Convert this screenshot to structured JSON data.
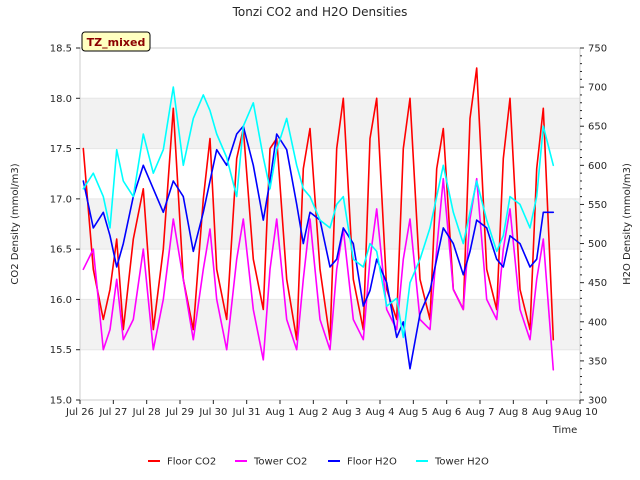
{
  "chart_data": {
    "type": "line",
    "title": "Tonzi CO2 and H2O Densities",
    "xlabel": "Time",
    "ylabel_left": "CO2 Density (mmol/m3)",
    "ylabel_right": "H2O Density (mmol/m3)",
    "ylim_left": [
      15.0,
      18.5
    ],
    "ylim_right": [
      300,
      750
    ],
    "xlim_days": [
      0,
      15
    ],
    "x_tick_labels": [
      "Jul 26",
      "Jul 27",
      "Jul 28",
      "Jul 29",
      "Jul 30",
      "Jul 31",
      "Aug 1",
      "Aug 2",
      "Aug 3",
      "Aug 4",
      "Aug 5",
      "Aug 6",
      "Aug 7",
      "Aug 8",
      "Aug 9",
      "Aug 10"
    ],
    "y_left_ticks": [
      "15.0",
      "15.5",
      "16.0",
      "16.5",
      "17.0",
      "17.5",
      "18.0",
      "18.5"
    ],
    "y_right_ticks": [
      "300",
      "350",
      "400",
      "450",
      "500",
      "550",
      "600",
      "650",
      "700",
      "750"
    ],
    "background_bands": "alternating gray bands between left-axis ticks",
    "annotation": "TZ_mixed",
    "legend_position": "bottom-center",
    "series": [
      {
        "name": "Floor CO2",
        "axis": "left",
        "color": "#ff0000",
        "x_days": [
          0.1,
          0.4,
          0.7,
          0.9,
          1.1,
          1.3,
          1.6,
          1.9,
          2.2,
          2.5,
          2.8,
          3.1,
          3.4,
          3.7,
          3.9,
          4.1,
          4.4,
          4.7,
          4.9,
          5.2,
          5.5,
          5.7,
          5.9,
          6.2,
          6.5,
          6.7,
          6.9,
          7.2,
          7.5,
          7.7,
          7.9,
          8.2,
          8.5,
          8.7,
          8.9,
          9.2,
          9.5,
          9.7,
          9.9,
          10.2,
          10.5,
          10.7,
          10.9,
          11.2,
          11.5,
          11.7,
          11.9,
          12.2,
          12.5,
          12.7,
          12.9,
          13.2,
          13.5,
          13.7,
          13.9,
          14.2
        ],
        "values": [
          17.5,
          16.3,
          15.8,
          16.1,
          16.6,
          15.7,
          16.6,
          17.1,
          15.7,
          16.5,
          17.9,
          16.2,
          15.7,
          17.0,
          17.6,
          16.3,
          15.8,
          17.4,
          17.7,
          16.4,
          15.9,
          17.5,
          17.6,
          16.2,
          15.6,
          17.3,
          17.7,
          16.3,
          15.6,
          17.5,
          18.0,
          16.2,
          15.7,
          17.6,
          18.0,
          16.1,
          15.8,
          17.5,
          18.0,
          16.2,
          15.8,
          17.3,
          17.7,
          16.1,
          15.9,
          17.8,
          18.3,
          16.3,
          15.9,
          17.4,
          18.0,
          16.1,
          15.7,
          17.3,
          17.9,
          15.6
        ]
      },
      {
        "name": "Tower CO2",
        "axis": "left",
        "color": "#ff00ff",
        "x_days": [
          0.1,
          0.4,
          0.7,
          0.9,
          1.1,
          1.3,
          1.6,
          1.9,
          2.2,
          2.5,
          2.8,
          3.1,
          3.4,
          3.7,
          3.9,
          4.1,
          4.4,
          4.7,
          4.9,
          5.2,
          5.5,
          5.7,
          5.9,
          6.2,
          6.5,
          6.7,
          6.9,
          7.2,
          7.5,
          7.7,
          7.9,
          8.2,
          8.5,
          8.7,
          8.9,
          9.2,
          9.5,
          9.7,
          9.9,
          10.2,
          10.5,
          10.7,
          10.9,
          11.2,
          11.5,
          11.7,
          11.9,
          12.2,
          12.5,
          12.7,
          12.9,
          13.2,
          13.5,
          13.7,
          13.9,
          14.2
        ],
        "values": [
          16.3,
          16.5,
          15.5,
          15.7,
          16.2,
          15.6,
          15.8,
          16.5,
          15.5,
          16.0,
          16.8,
          16.2,
          15.6,
          16.3,
          16.7,
          16.0,
          15.5,
          16.4,
          16.8,
          15.9,
          15.4,
          16.3,
          16.8,
          15.8,
          15.5,
          16.2,
          16.8,
          15.8,
          15.5,
          16.3,
          16.7,
          15.8,
          15.6,
          16.4,
          16.9,
          15.9,
          15.7,
          16.4,
          16.8,
          15.8,
          15.7,
          16.5,
          17.2,
          16.1,
          15.9,
          16.8,
          17.2,
          16.0,
          15.8,
          16.5,
          16.9,
          15.9,
          15.6,
          16.2,
          16.6,
          15.3
        ]
      },
      {
        "name": "Floor H2O",
        "axis": "right",
        "color": "#0000ff",
        "x_days": [
          0.1,
          0.4,
          0.7,
          0.9,
          1.1,
          1.3,
          1.6,
          1.9,
          2.2,
          2.5,
          2.8,
          3.1,
          3.4,
          3.7,
          3.9,
          4.1,
          4.4,
          4.7,
          4.9,
          5.2,
          5.5,
          5.7,
          5.9,
          6.2,
          6.5,
          6.7,
          6.9,
          7.2,
          7.5,
          7.7,
          7.9,
          8.2,
          8.5,
          8.7,
          8.9,
          9.2,
          9.5,
          9.7,
          9.9,
          10.2,
          10.5,
          10.7,
          10.9,
          11.2,
          11.5,
          11.7,
          11.9,
          12.2,
          12.5,
          12.7,
          12.9,
          13.2,
          13.5,
          13.7,
          13.9,
          14.2
        ],
        "values": [
          580,
          520,
          540,
          510,
          470,
          500,
          560,
          600,
          570,
          540,
          580,
          560,
          490,
          540,
          580,
          620,
          600,
          640,
          650,
          600,
          530,
          580,
          640,
          620,
          550,
          500,
          540,
          530,
          470,
          480,
          520,
          500,
          420,
          440,
          480,
          450,
          380,
          400,
          340,
          410,
          440,
          480,
          520,
          500,
          460,
          490,
          530,
          520,
          480,
          470,
          510,
          500,
          470,
          480,
          540,
          540
        ]
      },
      {
        "name": "Tower H2O",
        "axis": "right",
        "color": "#00ffff",
        "x_days": [
          0.1,
          0.4,
          0.7,
          0.9,
          1.1,
          1.3,
          1.6,
          1.9,
          2.2,
          2.5,
          2.8,
          3.1,
          3.4,
          3.7,
          3.9,
          4.1,
          4.4,
          4.7,
          4.9,
          5.2,
          5.5,
          5.7,
          5.9,
          6.2,
          6.5,
          6.7,
          6.9,
          7.2,
          7.5,
          7.7,
          7.9,
          8.2,
          8.5,
          8.7,
          8.9,
          9.2,
          9.5,
          9.7,
          9.9,
          10.2,
          10.5,
          10.7,
          10.9,
          11.2,
          11.5,
          11.7,
          11.9,
          12.2,
          12.5,
          12.7,
          12.9,
          13.2,
          13.5,
          13.7,
          13.9,
          14.2
        ],
        "values": [
          570,
          590,
          560,
          520,
          620,
          580,
          560,
          640,
          590,
          620,
          700,
          600,
          660,
          690,
          670,
          640,
          610,
          560,
          650,
          680,
          610,
          570,
          620,
          660,
          600,
          570,
          560,
          530,
          520,
          550,
          560,
          480,
          470,
          500,
          490,
          420,
          430,
          380,
          450,
          480,
          520,
          560,
          600,
          540,
          500,
          540,
          580,
          530,
          490,
          510,
          560,
          550,
          520,
          560,
          650,
          600
        ]
      }
    ]
  }
}
